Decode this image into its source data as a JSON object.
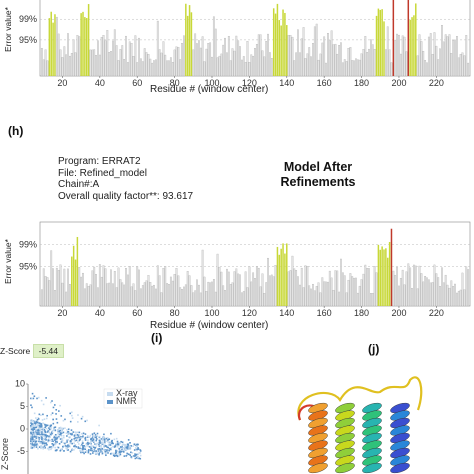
{
  "panel_h_label": "(h)",
  "panel_i_label": "(i)",
  "panel_j_label": "(j)",
  "info": {
    "program": "Program: ERRAT2",
    "file": "File: Refined_model",
    "chain": "Chain#:A",
    "quality": "Overall quality factor**: 93.617"
  },
  "heading": {
    "line1": "Model After",
    "line2": "Refinements"
  },
  "zscore": {
    "label": "Z-Score",
    "value": "-5.44"
  },
  "colors": {
    "grey": "#e4e4e4",
    "yellow": "#c8d838",
    "red": "#c0392b",
    "xray": "#c6dbef",
    "nmr": "#5b93c9"
  },
  "chart_data": [
    {
      "type": "bar",
      "ylabel": "Error value*",
      "xlabel": "Residue # (window center)",
      "yticks": [
        "99%",
        "95%"
      ],
      "xticks": [
        20,
        40,
        60,
        80,
        100,
        120,
        140,
        160,
        180,
        200,
        220
      ],
      "xlim": [
        8,
        238
      ],
      "note": "ERRAT error values per residue, before refinement (top, truncated)"
    },
    {
      "type": "bar",
      "ylabel": "Error value*",
      "xlabel": "Residue # (window center)",
      "yticks": [
        "99%",
        "95%"
      ],
      "xticks": [
        20,
        40,
        60,
        80,
        100,
        120,
        140,
        160,
        180,
        200,
        220
      ],
      "xlim": [
        8,
        238
      ],
      "quality_factor": 93.617,
      "highlighted_yellow": [
        [
          25,
          28
        ],
        [
          135,
          140
        ],
        [
          189,
          195
        ]
      ],
      "highlighted_red": [
        196
      ]
    },
    {
      "type": "scatter",
      "title": "",
      "ylabel": "Z-Score",
      "yticks": [
        10,
        5,
        0,
        -5
      ],
      "legend": [
        "X-ray",
        "NMR"
      ],
      "legend_position": "top-right",
      "zscore": -5.44
    }
  ]
}
